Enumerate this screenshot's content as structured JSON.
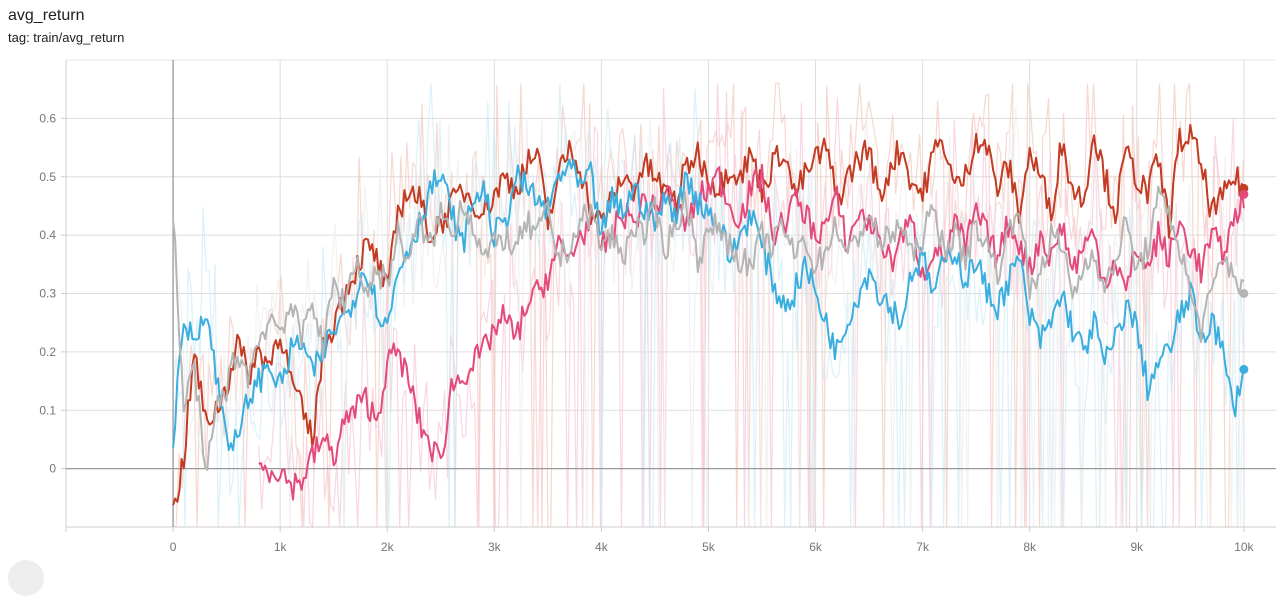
{
  "header": {
    "title": "avg_return",
    "subtitle": "tag: train/avg_return"
  },
  "chart_data": {
    "type": "line",
    "title": "avg_return",
    "xlabel": "",
    "ylabel": "",
    "xlim": [
      -1000,
      10300
    ],
    "ylim": [
      -0.1,
      0.7
    ],
    "xticks": [
      0,
      1000,
      2000,
      3000,
      4000,
      5000,
      6000,
      7000,
      8000,
      9000,
      10000
    ],
    "xtick_labels": [
      "0",
      "1k",
      "2k",
      "3k",
      "4k",
      "5k",
      "6k",
      "7k",
      "8k",
      "9k",
      "10k"
    ],
    "yticks": [
      0,
      0.1,
      0.2,
      0.3,
      0.4,
      0.5,
      0.6
    ],
    "ytick_labels": [
      "0",
      "0.1",
      "0.2",
      "0.3",
      "0.4",
      "0.5",
      "0.6"
    ],
    "grid": true,
    "legend": "none",
    "series": [
      {
        "color": "#c23b22",
        "raw_color": "#f4c7bc",
        "x": [
          0,
          100,
          200,
          300,
          400,
          500,
          600,
          700,
          800,
          900,
          1000,
          1100,
          1200,
          1300,
          1400,
          1500,
          1600,
          1700,
          1800,
          1900,
          2000,
          2100,
          2200,
          2300,
          2400,
          2500,
          2600,
          2700,
          2800,
          2900,
          3000,
          3100,
          3200,
          3300,
          3400,
          3500,
          3600,
          3700,
          3800,
          3900,
          4000,
          4100,
          4200,
          4300,
          4400,
          4500,
          4600,
          4700,
          4800,
          4900,
          5000,
          5100,
          5200,
          5300,
          5400,
          5500,
          5600,
          5700,
          5800,
          5900,
          6000,
          6100,
          6200,
          6300,
          6400,
          6500,
          6600,
          6700,
          6800,
          6900,
          7000,
          7100,
          7200,
          7300,
          7400,
          7500,
          7600,
          7700,
          7800,
          7900,
          8000,
          8100,
          8200,
          8300,
          8400,
          8500,
          8600,
          8700,
          8800,
          8900,
          9000,
          9100,
          9200,
          9300,
          9400,
          9500,
          9600,
          9700,
          9800,
          9900,
          10000
        ],
        "values": [
          -0.08,
          0.02,
          0.2,
          0.08,
          0.1,
          0.14,
          0.22,
          0.16,
          0.2,
          0.18,
          0.24,
          0.15,
          0.1,
          0.05,
          0.2,
          0.25,
          0.3,
          0.34,
          0.38,
          0.36,
          0.3,
          0.44,
          0.48,
          0.46,
          0.4,
          0.42,
          0.45,
          0.48,
          0.46,
          0.44,
          0.47,
          0.5,
          0.48,
          0.52,
          0.54,
          0.42,
          0.5,
          0.55,
          0.52,
          0.44,
          0.42,
          0.46,
          0.5,
          0.48,
          0.52,
          0.5,
          0.47,
          0.46,
          0.52,
          0.54,
          0.5,
          0.48,
          0.52,
          0.5,
          0.54,
          0.48,
          0.52,
          0.55,
          0.47,
          0.5,
          0.53,
          0.55,
          0.46,
          0.5,
          0.53,
          0.55,
          0.46,
          0.52,
          0.55,
          0.49,
          0.47,
          0.54,
          0.56,
          0.48,
          0.5,
          0.57,
          0.55,
          0.48,
          0.52,
          0.44,
          0.54,
          0.5,
          0.44,
          0.56,
          0.48,
          0.46,
          0.58,
          0.5,
          0.44,
          0.54,
          0.5,
          0.47,
          0.53,
          0.42,
          0.56,
          0.57,
          0.52,
          0.44,
          0.46,
          0.5,
          0.48
        ]
      },
      {
        "color": "#e34a7b",
        "raw_color": "#f7c6d6",
        "x": [
          800,
          900,
          1000,
          1100,
          1200,
          1300,
          1400,
          1500,
          1600,
          1700,
          1800,
          1900,
          2000,
          2100,
          2200,
          2300,
          2400,
          2500,
          2600,
          2700,
          2800,
          2900,
          3000,
          3100,
          3200,
          3300,
          3400,
          3500,
          3600,
          3700,
          3800,
          3900,
          4000,
          4100,
          4200,
          4300,
          4400,
          4500,
          4600,
          4700,
          4800,
          4900,
          5000,
          5100,
          5200,
          5300,
          5400,
          5500,
          5600,
          5700,
          5800,
          5900,
          6000,
          6100,
          6200,
          6300,
          6400,
          6500,
          6600,
          6700,
          6800,
          6900,
          7000,
          7100,
          7200,
          7300,
          7400,
          7500,
          7600,
          7700,
          7800,
          7900,
          8000,
          8100,
          8200,
          8300,
          8400,
          8500,
          8600,
          8700,
          8800,
          8900,
          9000,
          9100,
          9200,
          9300,
          9400,
          9500,
          9600,
          9700,
          9800,
          9900,
          10000
        ],
        "values": [
          0,
          0,
          0,
          -0.03,
          -0.02,
          0.02,
          0.05,
          0.02,
          0.08,
          0.1,
          0.12,
          0.08,
          0.18,
          0.2,
          0.15,
          0.08,
          0.04,
          0.01,
          0.14,
          0.16,
          0.18,
          0.2,
          0.24,
          0.26,
          0.22,
          0.28,
          0.3,
          0.33,
          0.38,
          0.36,
          0.4,
          0.42,
          0.38,
          0.4,
          0.44,
          0.42,
          0.46,
          0.44,
          0.48,
          0.44,
          0.42,
          0.46,
          0.48,
          0.5,
          0.45,
          0.43,
          0.48,
          0.5,
          0.4,
          0.42,
          0.46,
          0.44,
          0.4,
          0.42,
          0.46,
          0.38,
          0.44,
          0.42,
          0.4,
          0.35,
          0.4,
          0.42,
          0.33,
          0.38,
          0.36,
          0.42,
          0.38,
          0.44,
          0.4,
          0.36,
          0.42,
          0.39,
          0.34,
          0.4,
          0.36,
          0.42,
          0.34,
          0.38,
          0.4,
          0.32,
          0.36,
          0.3,
          0.38,
          0.34,
          0.4,
          0.36,
          0.42,
          0.38,
          0.34,
          0.4,
          0.37,
          0.42,
          0.47
        ]
      },
      {
        "color": "#3aaedf",
        "raw_color": "#cdebf7",
        "x": [
          0,
          100,
          200,
          300,
          400,
          500,
          600,
          700,
          800,
          900,
          1000,
          1100,
          1200,
          1300,
          1400,
          1500,
          1600,
          1700,
          1800,
          1900,
          2000,
          2100,
          2200,
          2300,
          2400,
          2500,
          2600,
          2700,
          2800,
          2900,
          3000,
          3100,
          3200,
          3300,
          3400,
          3500,
          3600,
          3700,
          3800,
          3900,
          4000,
          4100,
          4200,
          4300,
          4400,
          4500,
          4600,
          4700,
          4800,
          4900,
          5000,
          5100,
          5200,
          5300,
          5400,
          5500,
          5600,
          5700,
          5800,
          5900,
          6000,
          6100,
          6200,
          6300,
          6400,
          6500,
          6600,
          6700,
          6800,
          6900,
          7000,
          7100,
          7200,
          7300,
          7400,
          7500,
          7600,
          7700,
          7800,
          7900,
          8000,
          8100,
          8200,
          8300,
          8400,
          8500,
          8600,
          8700,
          8800,
          8900,
          9000,
          9100,
          9200,
          9300,
          9400,
          9500,
          9600,
          9700,
          9800,
          9900,
          10000
        ],
        "values": [
          0.05,
          0.25,
          0.22,
          0.28,
          0.16,
          0.06,
          0.04,
          0.12,
          0.15,
          0.18,
          0.14,
          0.2,
          0.22,
          0.16,
          0.2,
          0.24,
          0.26,
          0.3,
          0.35,
          0.28,
          0.24,
          0.34,
          0.38,
          0.42,
          0.48,
          0.5,
          0.44,
          0.38,
          0.46,
          0.48,
          0.4,
          0.42,
          0.5,
          0.48,
          0.46,
          0.44,
          0.5,
          0.52,
          0.48,
          0.5,
          0.4,
          0.46,
          0.44,
          0.48,
          0.45,
          0.42,
          0.46,
          0.44,
          0.5,
          0.46,
          0.44,
          0.42,
          0.36,
          0.4,
          0.44,
          0.38,
          0.32,
          0.28,
          0.3,
          0.35,
          0.3,
          0.25,
          0.2,
          0.26,
          0.3,
          0.34,
          0.3,
          0.28,
          0.25,
          0.34,
          0.36,
          0.3,
          0.35,
          0.38,
          0.32,
          0.36,
          0.3,
          0.28,
          0.32,
          0.36,
          0.26,
          0.22,
          0.25,
          0.3,
          0.24,
          0.2,
          0.25,
          0.18,
          0.22,
          0.28,
          0.24,
          0.14,
          0.18,
          0.2,
          0.26,
          0.3,
          0.22,
          0.26,
          0.2,
          0.1,
          0.17
        ]
      },
      {
        "color": "#b4b4b4",
        "raw_color": "#ececec",
        "x": [
          0,
          100,
          200,
          300,
          400,
          500,
          600,
          700,
          800,
          900,
          1000,
          1100,
          1200,
          1300,
          1400,
          1500,
          1600,
          1700,
          1800,
          1900,
          2000,
          2100,
          2200,
          2300,
          2400,
          2500,
          2600,
          2700,
          2800,
          2900,
          3000,
          3100,
          3200,
          3300,
          3400,
          3500,
          3600,
          3700,
          3800,
          3900,
          4000,
          4100,
          4200,
          4300,
          4400,
          4500,
          4600,
          4700,
          4800,
          4900,
          5000,
          5100,
          5200,
          5300,
          5400,
          5500,
          5600,
          5700,
          5800,
          5900,
          6000,
          6100,
          6200,
          6300,
          6400,
          6500,
          6600,
          6700,
          6800,
          6900,
          7000,
          7100,
          7200,
          7300,
          7400,
          7500,
          7600,
          7700,
          7800,
          7900,
          8000,
          8100,
          8200,
          8300,
          8400,
          8500,
          8600,
          8700,
          8800,
          8900,
          9000,
          9100,
          9200,
          9300,
          9400,
          9500,
          9600,
          9700,
          9800,
          9900,
          10000
        ],
        "values": [
          0.44,
          0.1,
          0.18,
          -0.02,
          0.1,
          0.14,
          0.2,
          0.16,
          0.22,
          0.26,
          0.24,
          0.28,
          0.22,
          0.3,
          0.2,
          0.32,
          0.28,
          0.36,
          0.3,
          0.34,
          0.32,
          0.4,
          0.36,
          0.42,
          0.38,
          0.44,
          0.4,
          0.46,
          0.42,
          0.36,
          0.38,
          0.4,
          0.37,
          0.42,
          0.4,
          0.44,
          0.36,
          0.38,
          0.42,
          0.44,
          0.38,
          0.4,
          0.36,
          0.42,
          0.4,
          0.44,
          0.38,
          0.42,
          0.46,
          0.36,
          0.4,
          0.42,
          0.38,
          0.36,
          0.34,
          0.4,
          0.38,
          0.42,
          0.36,
          0.4,
          0.34,
          0.38,
          0.42,
          0.36,
          0.4,
          0.44,
          0.38,
          0.4,
          0.42,
          0.36,
          0.4,
          0.44,
          0.38,
          0.4,
          0.36,
          0.42,
          0.38,
          0.34,
          0.4,
          0.46,
          0.3,
          0.34,
          0.4,
          0.38,
          0.3,
          0.34,
          0.38,
          0.3,
          0.36,
          0.42,
          0.34,
          0.38,
          0.46,
          0.44,
          0.38,
          0.3,
          0.24,
          0.3,
          0.36,
          0.34,
          0.3
        ]
      }
    ]
  }
}
